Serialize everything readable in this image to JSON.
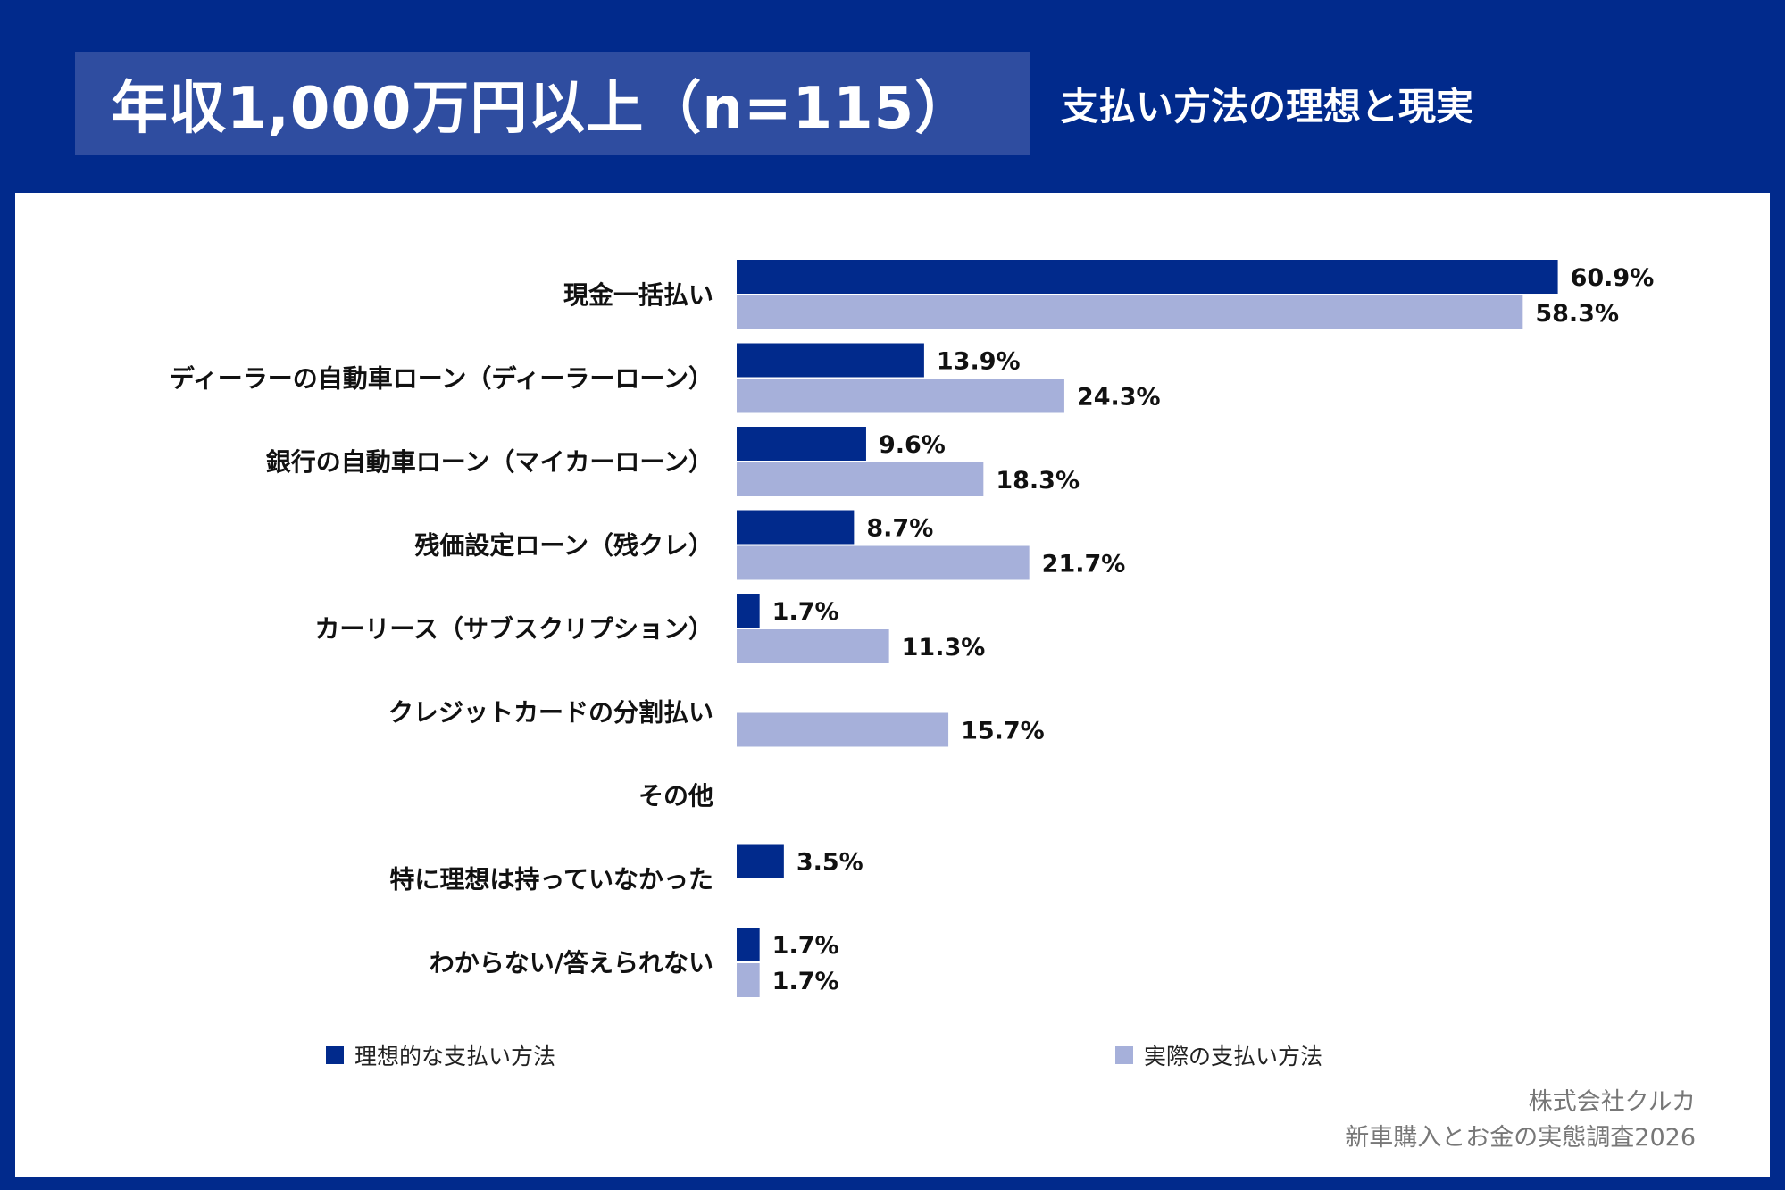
{
  "header": {
    "title": "年収1,000万円以上（n=115）",
    "subtitle": "支払い方法の理想と現実"
  },
  "colors": {
    "ideal": "#012a8c",
    "actual": "#a6b0da",
    "background": "#012a8c",
    "title_box": "#2f4da0"
  },
  "chart_data": {
    "type": "bar",
    "orientation": "horizontal",
    "categories": [
      "現金一括払い",
      "ディーラーの自動車ローン（ディーラーローン）",
      "銀行の自動車ローン（マイカーローン）",
      "残価設定ローン（残クレ）",
      "カーリース（サブスクリプション）",
      "クレジットカードの分割払い",
      "その他",
      "特に理想は持っていなかった",
      "わからない/答えられない"
    ],
    "series": [
      {
        "name": "理想的な支払い方法",
        "values": [
          60.9,
          13.9,
          9.6,
          8.7,
          1.7,
          null,
          null,
          3.5,
          1.7
        ],
        "labels": [
          "60.9%",
          "13.9%",
          "9.6%",
          "8.7%",
          "1.7%",
          "",
          "",
          "3.5%",
          "1.7%"
        ]
      },
      {
        "name": "実際の支払い方法",
        "values": [
          58.3,
          24.3,
          18.3,
          21.7,
          11.3,
          15.7,
          null,
          null,
          1.7
        ],
        "labels": [
          "58.3%",
          "24.3%",
          "18.3%",
          "21.7%",
          "11.3%",
          "15.7%",
          "",
          "",
          "1.7%"
        ]
      }
    ],
    "xlim": [
      0,
      100
    ],
    "grid": false,
    "legend_position": "bottom"
  },
  "legend": {
    "ideal_label": "理想的な支払い方法",
    "actual_label": "実際の支払い方法"
  },
  "credit": {
    "company": "株式会社クルカ",
    "survey": "新車購入とお金の実態調査2026"
  }
}
